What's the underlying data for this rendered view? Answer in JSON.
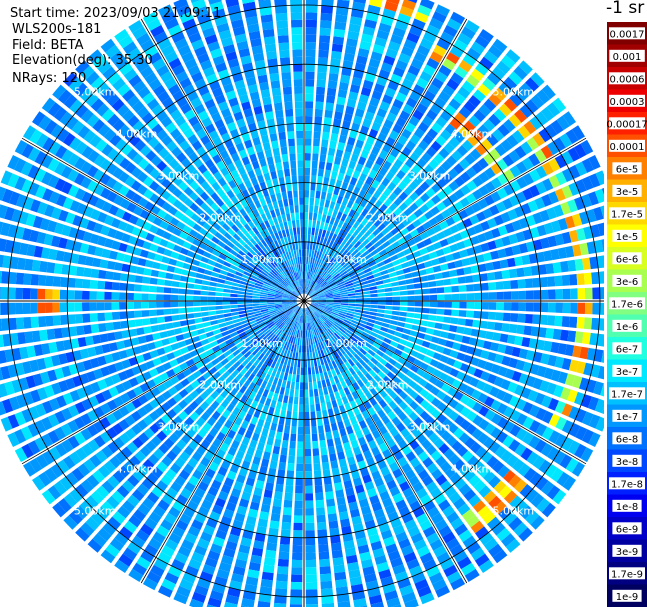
{
  "header": {
    "start_time": "Start time: 2023/09/03 21:09:11",
    "instrument": "WLS200s-181",
    "field": "Field: BETA",
    "elevation": "Elevation(deg): 35.30",
    "nrays": "NRays: 120"
  },
  "chart_data": {
    "type": "heatmap",
    "projection": "polar-ppi",
    "field": "BETA",
    "units_label": "-1 sr",
    "n_rays": 120,
    "range_rings_km": [
      1,
      2,
      3,
      4,
      5
    ],
    "ring_labels": [
      "1.00km",
      "2.00km",
      "3.00km",
      "4.00km",
      "5.00km"
    ],
    "max_range_km": 5.5,
    "spokes_deg": [
      0,
      30,
      60,
      90,
      120,
      150,
      180,
      210,
      240,
      270,
      300,
      330
    ],
    "colorbar": {
      "labels": [
        "0.0017",
        "0.001",
        "0.0006",
        "0.0003",
        "0.00017",
        "0.0001",
        "6e-5",
        "3e-5",
        "1.7e-5",
        "1e-5",
        "6e-6",
        "3e-6",
        "1.7e-6",
        "1e-6",
        "6e-7",
        "3e-7",
        "1.7e-7",
        "1e-7",
        "6e-8",
        "3e-8",
        "1.7e-8",
        "1e-8",
        "6e-9",
        "3e-9",
        "1.7e-9",
        "1e-9"
      ],
      "colors": [
        "#800000",
        "#a00000",
        "#c80000",
        "#ee0000",
        "#ff2000",
        "#ff5000",
        "#ff8000",
        "#ffb000",
        "#ffd800",
        "#ffff00",
        "#d8ff20",
        "#a8ff50",
        "#80ff80",
        "#50ffb0",
        "#20ffe0",
        "#00e8ff",
        "#00c0ff",
        "#0098ff",
        "#0070ff",
        "#0048ff",
        "#0020ff",
        "#0000f0",
        "#0000c8",
        "#0000a0",
        "#000080",
        "#000060"
      ]
    },
    "features": [
      {
        "type": "arc",
        "range_km": 4.75,
        "azimuth_from_deg": 28,
        "azimuth_to_deg": 118,
        "level": "1e-5 to 1e-4"
      },
      {
        "type": "arc",
        "range_km": 5.25,
        "azimuth_from_deg": 12,
        "azimuth_to_deg": 24,
        "level": "3e-5 to 1e-4"
      },
      {
        "type": "arc",
        "range_km": 4.0,
        "azimuth_from_deg": 40,
        "azimuth_to_deg": 60,
        "level": "1e-5 to 3e-5"
      },
      {
        "type": "arc",
        "range_km": 4.7,
        "azimuth_from_deg": 128,
        "azimuth_to_deg": 145,
        "level": "1e-5 to 6e-5"
      },
      {
        "type": "arc",
        "range_km": 4.3,
        "azimuth_from_deg": 266,
        "azimuth_to_deg": 274,
        "level": "1e-5 to 6e-5"
      }
    ]
  }
}
